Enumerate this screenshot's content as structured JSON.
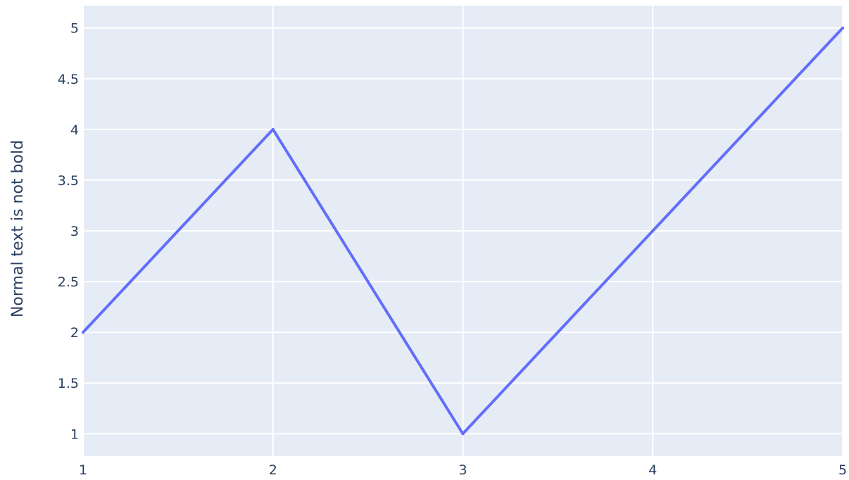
{
  "chart_data": {
    "type": "line",
    "title": "",
    "xlabel": "",
    "ylabel": "Normal text is not bold",
    "x": [
      1,
      2,
      3,
      4,
      5
    ],
    "series": [
      {
        "values": [
          2,
          4,
          1,
          3,
          5
        ],
        "color": "#636efa"
      }
    ],
    "xlim": [
      1,
      5
    ],
    "ylim": [
      0.78,
      5.22
    ],
    "x_ticks": [
      1,
      2,
      3,
      4,
      5
    ],
    "x_tick_labels": [
      "1",
      "2",
      "3",
      "4",
      "5"
    ],
    "y_ticks": [
      1,
      1.5,
      2,
      2.5,
      3,
      3.5,
      4,
      4.5,
      5
    ],
    "y_tick_labels": [
      "1",
      "1.5",
      "2",
      "2.5",
      "3",
      "3.5",
      "4",
      "4.5",
      "5"
    ],
    "grid": true,
    "plot_background": "#e5ecf6",
    "grid_color": "#ffffff",
    "text_color": "#2a3f5f"
  }
}
